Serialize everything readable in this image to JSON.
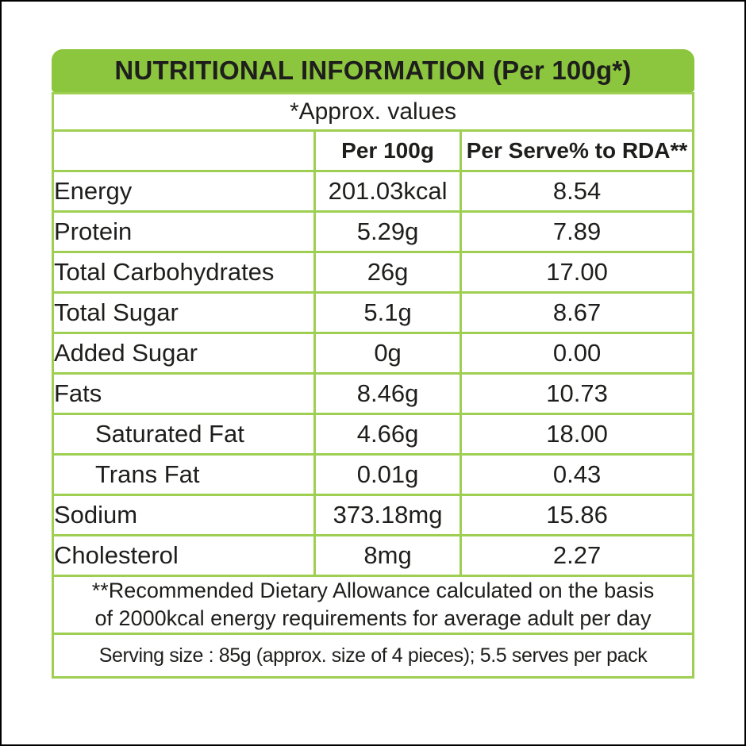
{
  "header": {
    "title": "NUTRITIONAL INFORMATION (Per 100g*)"
  },
  "table": {
    "approx_note": "*Approx. values",
    "columns": [
      "",
      "Per 100g",
      "Per Serve% to RDA**"
    ],
    "rows": [
      {
        "label": "Energy",
        "per_100g": "201.03kcal",
        "per_serve_rda": "8.54",
        "indent": false
      },
      {
        "label": "Protein",
        "per_100g": "5.29g",
        "per_serve_rda": "7.89",
        "indent": false
      },
      {
        "label": "Total Carbohydrates",
        "per_100g": "26g",
        "per_serve_rda": "17.00",
        "indent": false
      },
      {
        "label": "Total Sugar",
        "per_100g": "5.1g",
        "per_serve_rda": "8.67",
        "indent": false
      },
      {
        "label": "Added Sugar",
        "per_100g": "0g",
        "per_serve_rda": "0.00",
        "indent": false
      },
      {
        "label": "Fats",
        "per_100g": "8.46g",
        "per_serve_rda": "10.73",
        "indent": false
      },
      {
        "label": "Saturated Fat",
        "per_100g": "4.66g",
        "per_serve_rda": "18.00",
        "indent": true
      },
      {
        "label": "Trans Fat",
        "per_100g": "0.01g",
        "per_serve_rda": "0.43",
        "indent": true
      },
      {
        "label": "Sodium",
        "per_100g": "373.18mg",
        "per_serve_rda": "15.86",
        "indent": false
      },
      {
        "label": "Cholesterol",
        "per_100g": "8mg",
        "per_serve_rda": "2.27",
        "indent": false
      }
    ]
  },
  "footer": {
    "rda_note_lines": [
      "**Recommended Dietary Allowance calculated on the basis",
      "of 2000kcal energy requirements for average adult per day"
    ],
    "serving_note": "Serving size : 85g (approx. size of 4 pieces); 5.5 serves per pack"
  },
  "colors": {
    "banner_green": "#8cc63f",
    "border_green": "#9ecf52",
    "text": "#1e1e1c",
    "frame": "#000000"
  }
}
